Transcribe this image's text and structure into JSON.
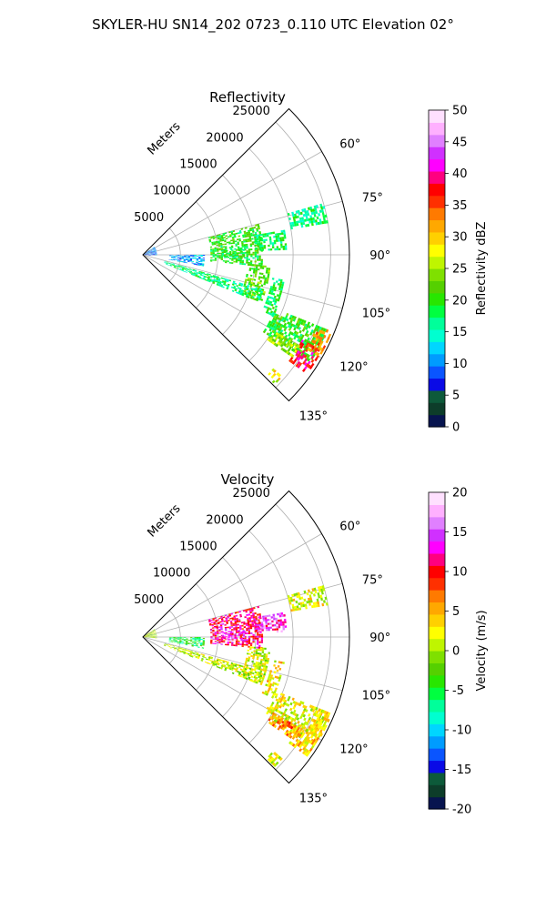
{
  "figure": {
    "suptitle": "SKYLER-HU  SN14_202  0723_0.110 UTC Elevation 02°"
  },
  "chart_data": [
    {
      "type": "heatmap",
      "projection": "polar-sector",
      "title": "Reflectivity",
      "radial_label": "Meters",
      "radial_ticks": [
        "5000",
        "10000",
        "15000",
        "20000",
        "25000"
      ],
      "radial_tick_values": [
        5000,
        10000,
        15000,
        20000,
        25000
      ],
      "r_max": 27500,
      "angle_range_deg": [
        45,
        135
      ],
      "angle_ticks": [
        "60°",
        "75°",
        "90°",
        "105°",
        "120°",
        "135°"
      ],
      "angle_tick_values": [
        60,
        75,
        90,
        105,
        120,
        135
      ],
      "grid": true,
      "colorbar": {
        "label": "Reflectivity dBZ",
        "min": 0,
        "max": 50,
        "ticks": [
          "0",
          "5",
          "10",
          "15",
          "20",
          "25",
          "30",
          "35",
          "40",
          "45",
          "50"
        ],
        "colors": [
          "#07144f",
          "#0d3d2a",
          "#0d5a3a",
          "#0a0ae6",
          "#0a55ff",
          "#009cff",
          "#00d6ff",
          "#00ffd0",
          "#00ff9a",
          "#00ff40",
          "#28e600",
          "#55d000",
          "#7fe000",
          "#bff500",
          "#ffff00",
          "#ffd000",
          "#ffa800",
          "#ff7a00",
          "#ff3000",
          "#ff0000",
          "#ff0080",
          "#ff00ff",
          "#d030ff",
          "#e080ff",
          "#ffb0ff",
          "#ffe0ff"
        ]
      },
      "echo_regions": [
        {
          "az": [
            75,
            95
          ],
          "r": [
            9000,
            16000
          ],
          "value": 20
        },
        {
          "az": [
            80,
            88
          ],
          "r": [
            15000,
            19000
          ],
          "value": 18
        },
        {
          "az": [
            86,
            92
          ],
          "r": [
            10500,
            13500
          ],
          "value": 19
        },
        {
          "az": [
            74,
            80
          ],
          "r": [
            20000,
            25000
          ],
          "value": 17
        },
        {
          "az": [
            95,
            112
          ],
          "r": [
            14000,
            17000
          ],
          "value": 22
        },
        {
          "az": [
            100,
            115
          ],
          "r": [
            17500,
            19000
          ],
          "value": 18
        },
        {
          "az": [
            106,
            112
          ],
          "r": [
            3000,
            16500
          ],
          "value": 17
        },
        {
          "az": [
            112,
            122
          ],
          "r": [
            19000,
            26500
          ],
          "value": 20
        },
        {
          "az": [
            118,
            126
          ],
          "r": [
            24000,
            27000
          ],
          "value": 38
        },
        {
          "az": [
            112,
            120
          ],
          "r": [
            25000,
            27000
          ],
          "value": 32
        },
        {
          "az": [
            120,
            124
          ],
          "r": [
            20000,
            24000
          ],
          "value": 25
        },
        {
          "az": [
            131,
            134
          ],
          "r": [
            23000,
            24500
          ],
          "value": 28
        },
        {
          "az": [
            55,
            95
          ],
          "r": [
            200,
            1800
          ],
          "value": 10
        },
        {
          "az": [
            90,
            100
          ],
          "r": [
            3500,
            8000
          ],
          "value": 11
        }
      ]
    },
    {
      "type": "heatmap",
      "projection": "polar-sector",
      "title": "Velocity",
      "radial_label": "Meters",
      "radial_ticks": [
        "5000",
        "10000",
        "15000",
        "20000",
        "25000"
      ],
      "radial_tick_values": [
        5000,
        10000,
        15000,
        20000,
        25000
      ],
      "r_max": 27500,
      "angle_range_deg": [
        45,
        135
      ],
      "angle_ticks": [
        "60°",
        "75°",
        "90°",
        "105°",
        "120°",
        "135°"
      ],
      "angle_tick_values": [
        60,
        75,
        90,
        105,
        120,
        135
      ],
      "grid": true,
      "colorbar": {
        "label": "Velocity (m/s)",
        "min": -20,
        "max": 20,
        "ticks": [
          "-20",
          "-15",
          "-10",
          "-5",
          "0",
          "5",
          "10",
          "15",
          "20"
        ],
        "colors": [
          "#07144f",
          "#0d3d2a",
          "#0d5a3a",
          "#0a0ae6",
          "#0a55ff",
          "#009cff",
          "#00d6ff",
          "#00ffd0",
          "#00ff9a",
          "#00ff40",
          "#28e600",
          "#55d000",
          "#7fe000",
          "#bff500",
          "#ffff00",
          "#ffd000",
          "#ffa800",
          "#ff7a00",
          "#ff3000",
          "#ff0000",
          "#ff0080",
          "#ff00ff",
          "#d030ff",
          "#e080ff",
          "#ffb0ff",
          "#ffe0ff"
        ]
      },
      "echo_regions": [
        {
          "az": [
            75,
            95
          ],
          "r": [
            9000,
            16000
          ],
          "value": 11
        },
        {
          "az": [
            80,
            88
          ],
          "r": [
            15000,
            19000
          ],
          "value": 14
        },
        {
          "az": [
            86,
            92
          ],
          "r": [
            10500,
            13500
          ],
          "value": 15
        },
        {
          "az": [
            74,
            80
          ],
          "r": [
            20000,
            25000
          ],
          "value": 2
        },
        {
          "az": [
            95,
            112
          ],
          "r": [
            14000,
            17000
          ],
          "value": 1
        },
        {
          "az": [
            100,
            115
          ],
          "r": [
            17500,
            19000
          ],
          "value": 3
        },
        {
          "az": [
            106,
            112
          ],
          "r": [
            3000,
            16500
          ],
          "value": 1
        },
        {
          "az": [
            112,
            122
          ],
          "r": [
            19000,
            26500
          ],
          "value": 2
        },
        {
          "az": [
            118,
            126
          ],
          "r": [
            24000,
            27000
          ],
          "value": 4
        },
        {
          "az": [
            112,
            120
          ],
          "r": [
            25000,
            27000
          ],
          "value": 3
        },
        {
          "az": [
            120,
            124
          ],
          "r": [
            20000,
            24000
          ],
          "value": 6
        },
        {
          "az": [
            131,
            134
          ],
          "r": [
            23000,
            24500
          ],
          "value": 2
        },
        {
          "az": [
            55,
            95
          ],
          "r": [
            200,
            1800
          ],
          "value": 0
        },
        {
          "az": [
            90,
            100
          ],
          "r": [
            3500,
            8000
          ],
          "value": -5
        }
      ]
    }
  ]
}
